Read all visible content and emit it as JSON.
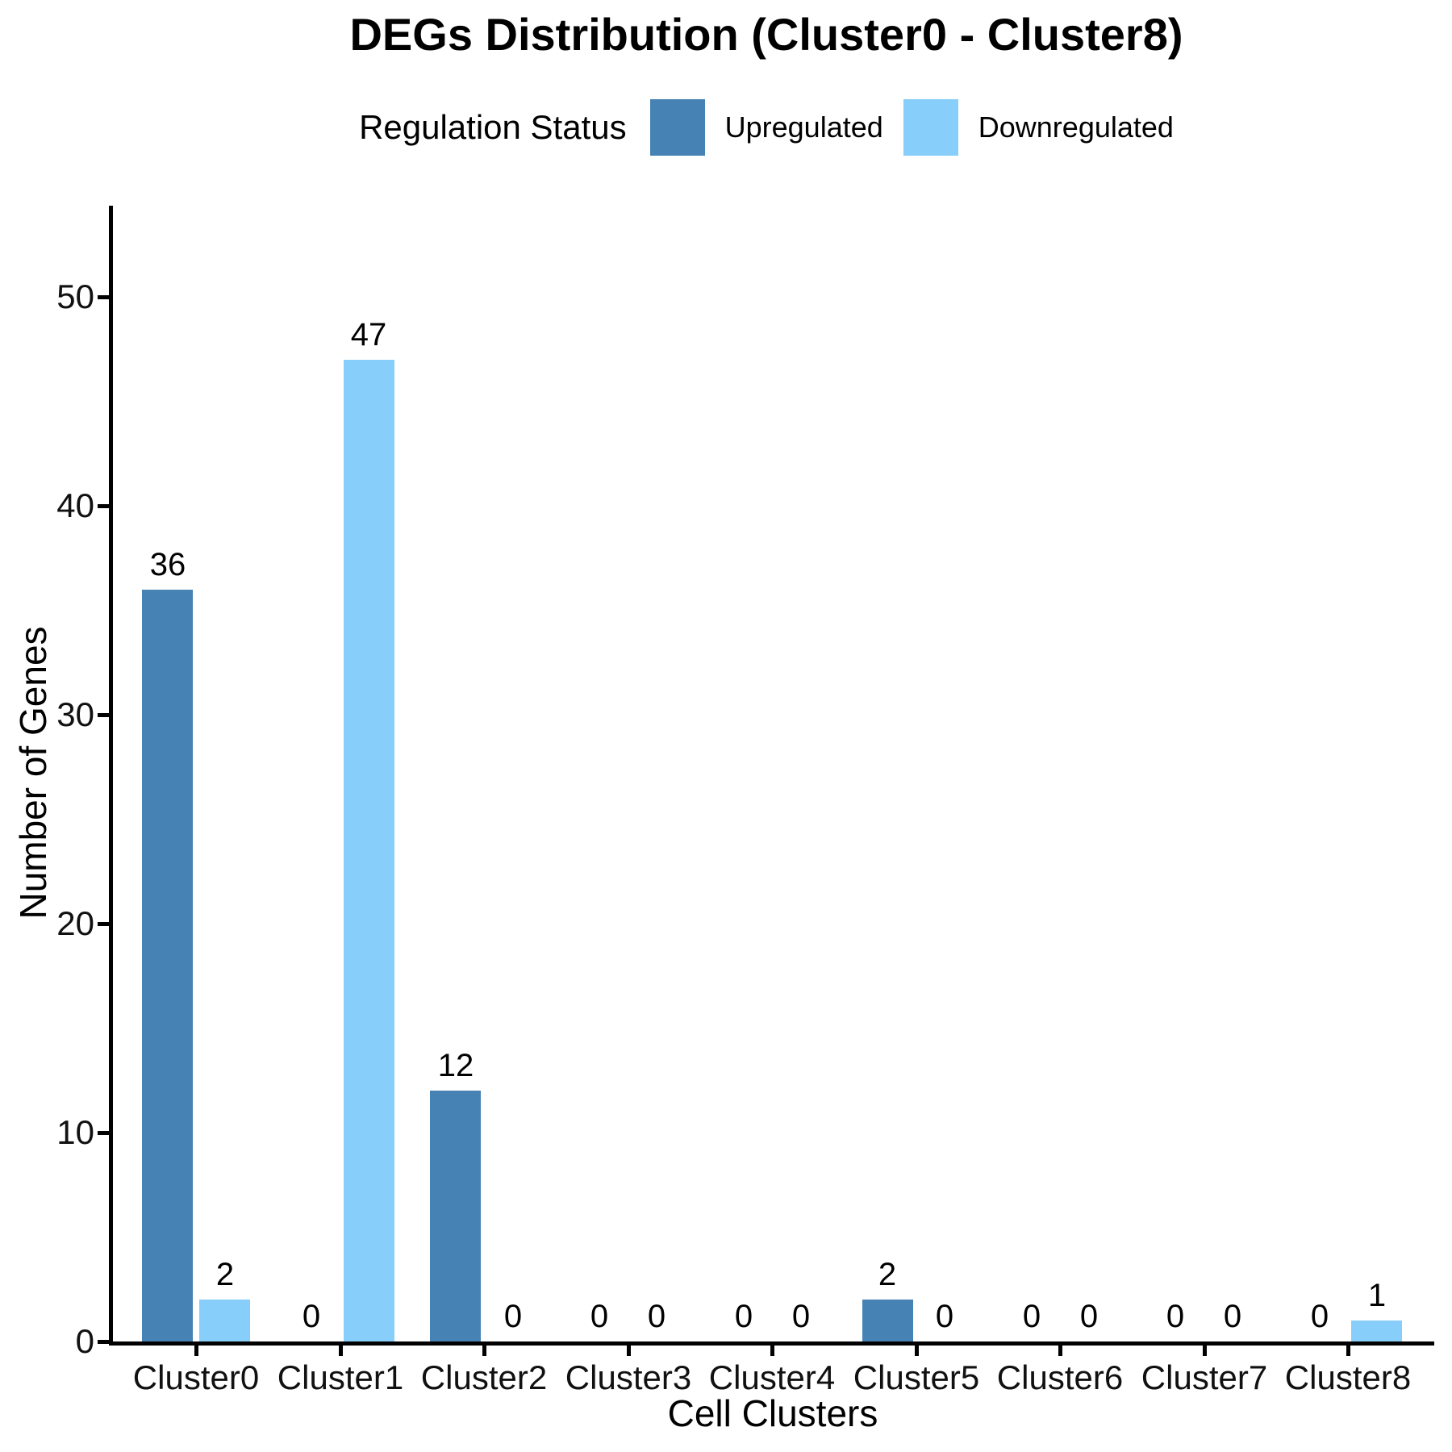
{
  "title": "DEGs Distribution (Cluster0 - Cluster8)",
  "legend": {
    "title": "Regulation Status",
    "items": [
      {
        "label": "Upregulated",
        "color": "#4682B4"
      },
      {
        "label": "Downregulated",
        "color": "#87CEFA"
      }
    ]
  },
  "chart_data": {
    "type": "bar",
    "title": "DEGs Distribution (Cluster0 - Cluster8)",
    "xlabel": "Cell Clusters",
    "ylabel": "Number of Genes",
    "categories": [
      "Cluster0",
      "Cluster1",
      "Cluster2",
      "Cluster3",
      "Cluster4",
      "Cluster5",
      "Cluster6",
      "Cluster7",
      "Cluster8"
    ],
    "series": [
      {
        "name": "Upregulated",
        "color": "#4682B4",
        "values": [
          36,
          0,
          12,
          0,
          0,
          2,
          0,
          0,
          0
        ]
      },
      {
        "name": "Downregulated",
        "color": "#87CEFA",
        "values": [
          2,
          47,
          0,
          0,
          0,
          0,
          0,
          0,
          1
        ]
      }
    ],
    "ylim": [
      0,
      53
    ],
    "yticks": [
      0,
      10,
      20,
      30,
      40,
      50
    ],
    "bar_labels": true,
    "grid": false,
    "legend_position": "top",
    "axis_color": "#000000"
  }
}
